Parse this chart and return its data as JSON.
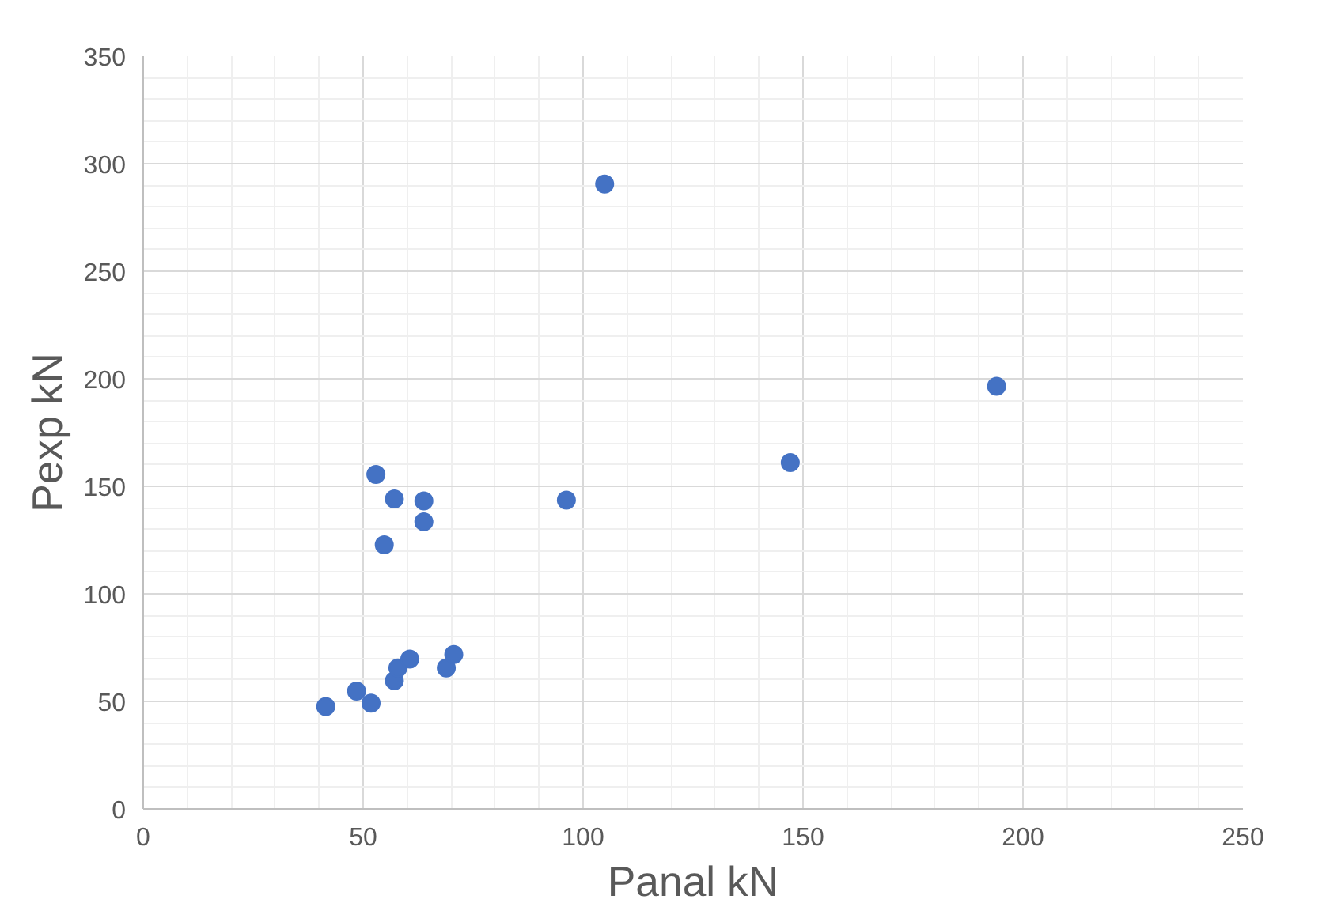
{
  "chart_data": {
    "type": "scatter",
    "xlabel": "Panal kN",
    "ylabel": "Pexp kN",
    "xlim": [
      0,
      250
    ],
    "ylim": [
      0,
      350
    ],
    "xticks": [
      0,
      50,
      100,
      150,
      200,
      250
    ],
    "yticks": [
      0,
      50,
      100,
      150,
      200,
      250,
      300,
      350
    ],
    "grid": true,
    "marker": "circle",
    "series": [
      {
        "color": "#4472c4",
        "x": [
          41.5,
          48.5,
          51.8,
          52.9,
          54.8,
          57.1,
          57.1,
          57.9,
          60.6,
          63.8,
          63.8,
          68.9,
          70.6,
          96.2,
          104.9,
          147.1,
          194.0
        ],
        "values": [
          47.6,
          54.8,
          49.2,
          155.5,
          122.8,
          144.1,
          59.6,
          65.5,
          69.7,
          143.2,
          133.5,
          65.5,
          71.8,
          143.6,
          290.5,
          161.0,
          196.5
        ]
      }
    ]
  }
}
